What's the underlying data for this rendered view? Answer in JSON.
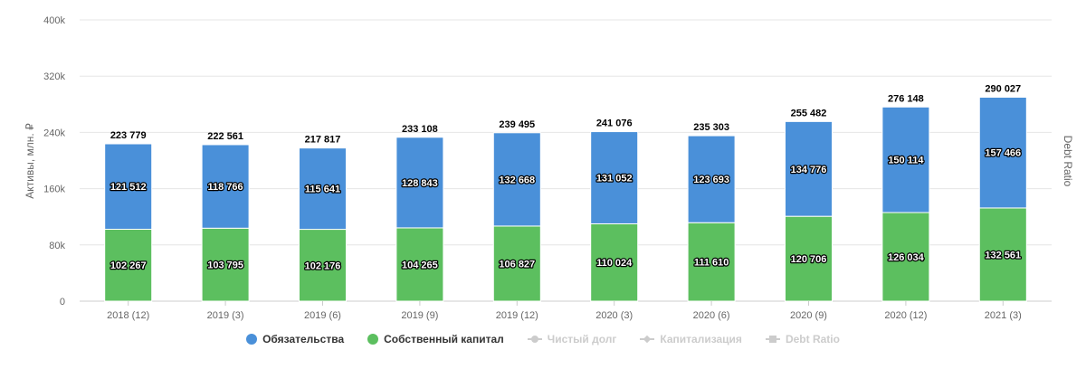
{
  "chart_data": {
    "type": "bar",
    "stacked": true,
    "categories": [
      "2018 (12)",
      "2019 (3)",
      "2019 (6)",
      "2019 (9)",
      "2019 (12)",
      "2020 (3)",
      "2020 (6)",
      "2020 (9)",
      "2020 (12)",
      "2021 (3)"
    ],
    "series": [
      {
        "name": "Собственный капитал",
        "color": "#5cbf5f",
        "values": [
          102267,
          103795,
          102176,
          104265,
          106827,
          110024,
          111610,
          120706,
          126034,
          132561
        ],
        "labels": [
          "102 267",
          "103 795",
          "102 176",
          "104 265",
          "106 827",
          "110 024",
          "111 610",
          "120 706",
          "126 034",
          "132 561"
        ]
      },
      {
        "name": "Обязательства",
        "color": "#4a90d9",
        "values": [
          121512,
          118766,
          115641,
          128843,
          132668,
          131052,
          123693,
          134776,
          150114,
          157466
        ],
        "labels": [
          "121 512",
          "118 766",
          "115 641",
          "128 843",
          "132 668",
          "131 052",
          "123 693",
          "134 776",
          "150 114",
          "157 466"
        ]
      }
    ],
    "totals": [
      223779,
      222561,
      217817,
      233108,
      239495,
      241076,
      235303,
      255482,
      276148,
      290027
    ],
    "total_labels": [
      "223 779",
      "222 561",
      "217 817",
      "233 108",
      "239 495",
      "241 076",
      "235 303",
      "255 482",
      "276 148",
      "290 027"
    ],
    "ylabel": "Активы, млн. ₽",
    "y2label": "Debt Ratio",
    "ylim": [
      0,
      400000
    ],
    "yticks": [
      0,
      80000,
      160000,
      240000,
      320000,
      400000
    ],
    "ytick_labels": [
      "0",
      "80k",
      "160k",
      "240k",
      "320k",
      "400k"
    ],
    "grid": true,
    "legend_position": "bottom"
  },
  "legend": {
    "items": [
      {
        "label": "Обязательства",
        "color": "#4a90d9",
        "active": true,
        "symbol": "dot"
      },
      {
        "label": "Собственный капитал",
        "color": "#5cbf5f",
        "active": true,
        "symbol": "dot"
      },
      {
        "label": "Чистый долг",
        "color": "#cccccc",
        "active": false,
        "symbol": "circle"
      },
      {
        "label": "Капитализация",
        "color": "#cccccc",
        "active": false,
        "symbol": "diamond"
      },
      {
        "label": "Debt Ratio",
        "color": "#cccccc",
        "active": false,
        "symbol": "square"
      }
    ]
  }
}
